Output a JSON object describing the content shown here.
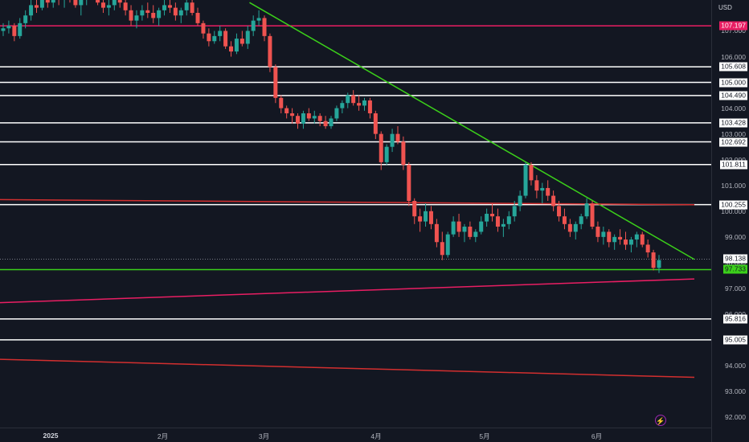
{
  "price_scale": {
    "currency": "USD",
    "ticks": [
      "107.000",
      "106.000",
      "105.000",
      "104.000",
      "103.000",
      "102.000",
      "101.000",
      "100.000",
      "99.000",
      "98.000",
      "97.000",
      "96.000",
      "95.000",
      "94.000",
      "93.000",
      "92.000"
    ],
    "tick_values": [
      107,
      106,
      105,
      104,
      103,
      102,
      101,
      100,
      99,
      98,
      97,
      96,
      95,
      94,
      93,
      92
    ]
  },
  "time_scale": {
    "labels": [
      "2025",
      "2月",
      "3月",
      "4月",
      "5月",
      "6月"
    ]
  },
  "colors": {
    "background": "#131722",
    "up_candle": "#26a69a",
    "down_candle": "#ef5350",
    "horizontal_level": "#ffffff",
    "pink_level": "#e91e63",
    "red_trendline": "#d32f2f",
    "green_trendline": "#3bd01a",
    "current_price_line": "#787b86",
    "lightning_icon": "#9c27b0"
  },
  "chart_data": {
    "type": "candlestick",
    "title": "",
    "currency": "USD",
    "ylim": [
      91.6,
      108.2
    ],
    "x_labels": [
      "2025",
      "2月",
      "3月",
      "4月",
      "5月",
      "6月"
    ],
    "horizontal_levels": [
      {
        "value": 107.197,
        "label": "107.197",
        "color": "#e91e63"
      },
      {
        "value": 105.608,
        "label": "105.608",
        "color": "#ffffff"
      },
      {
        "value": 105.0,
        "label": "105.000",
        "color": "#ffffff"
      },
      {
        "value": 104.49,
        "label": "104.490",
        "color": "#ffffff"
      },
      {
        "value": 103.428,
        "label": "103.428",
        "color": "#ffffff"
      },
      {
        "value": 102.692,
        "label": "102.692",
        "color": "#ffffff"
      },
      {
        "value": 101.811,
        "label": "101.811",
        "color": "#ffffff"
      },
      {
        "value": 100.255,
        "label": "100.255",
        "color": "#ffffff"
      },
      {
        "value": 97.733,
        "label": "97.733",
        "color": "#3bd01a"
      },
      {
        "value": 95.816,
        "label": "95.816",
        "color": "#ffffff"
      },
      {
        "value": 95.005,
        "label": "95.005",
        "color": "#ffffff"
      }
    ],
    "current_price": {
      "value": 98.138,
      "label": "98.138"
    },
    "trendlines": [
      {
        "name": "",
        "color": "#3bd01a",
        "from": {
          "date": "2025-02-25",
          "price": 108.1
        },
        "to": {
          "date": "2025-06-28",
          "price": 98.13
        }
      },
      {
        "name": "",
        "color": "#d32f2f",
        "from": {
          "date": "2024-12-18",
          "price": 100.45
        },
        "to": {
          "date": "2025-06-28",
          "price": 100.25
        }
      },
      {
        "name": "",
        "color": "#e91e63",
        "from": {
          "date": "2024-12-18",
          "price": 96.45
        },
        "to": {
          "date": "2025-06-28",
          "price": 97.37
        }
      },
      {
        "name": "",
        "color": "#d32f2f",
        "from": {
          "date": "2024-12-18",
          "price": 94.25
        },
        "to": {
          "date": "2025-06-28",
          "price": 93.55
        }
      }
    ],
    "candles": [
      [
        107.0,
        107.3,
        106.8,
        107.1
      ],
      [
        107.1,
        107.4,
        106.9,
        107.2
      ],
      [
        107.2,
        107.3,
        106.6,
        106.8
      ],
      [
        106.8,
        107.5,
        106.7,
        107.3
      ],
      [
        107.3,
        107.8,
        107.1,
        107.6
      ],
      [
        107.6,
        108.2,
        107.4,
        108.0
      ],
      [
        108.0,
        108.4,
        107.7,
        107.9
      ],
      [
        107.9,
        108.3,
        107.8,
        108.2
      ],
      [
        108.2,
        108.5,
        107.9,
        108.1
      ],
      [
        108.1,
        108.6,
        107.9,
        108.4
      ],
      [
        108.4,
        108.7,
        108.0,
        108.2
      ],
      [
        108.2,
        108.6,
        107.9,
        108.5
      ],
      [
        108.5,
        108.8,
        108.1,
        108.3
      ],
      [
        108.3,
        108.6,
        107.9,
        108.0
      ],
      [
        108.0,
        108.4,
        107.6,
        108.2
      ],
      [
        108.2,
        108.7,
        108.0,
        108.5
      ],
      [
        108.5,
        108.9,
        108.2,
        108.4
      ],
      [
        108.4,
        108.6,
        108.0,
        108.1
      ],
      [
        108.1,
        108.3,
        107.7,
        107.9
      ],
      [
        107.9,
        108.2,
        107.6,
        108.0
      ],
      [
        108.0,
        108.4,
        107.8,
        108.3
      ],
      [
        108.3,
        108.6,
        107.9,
        108.1
      ],
      [
        108.1,
        108.3,
        107.6,
        107.8
      ],
      [
        107.8,
        108.0,
        107.2,
        107.4
      ],
      [
        107.4,
        107.8,
        107.1,
        107.6
      ],
      [
        107.6,
        108.0,
        107.4,
        107.8
      ],
      [
        107.8,
        108.1,
        107.5,
        107.7
      ],
      [
        107.7,
        108.0,
        107.3,
        107.5
      ],
      [
        107.5,
        107.9,
        107.2,
        107.8
      ],
      [
        107.8,
        108.2,
        107.6,
        108.0
      ],
      [
        108.0,
        108.3,
        107.7,
        107.9
      ],
      [
        107.9,
        108.1,
        107.4,
        107.6
      ],
      [
        107.6,
        107.9,
        107.3,
        107.8
      ],
      [
        107.8,
        108.3,
        107.6,
        108.1
      ],
      [
        108.1,
        108.2,
        107.6,
        107.7
      ],
      [
        107.7,
        107.9,
        107.2,
        107.3
      ],
      [
        107.3,
        107.4,
        106.7,
        106.9
      ],
      [
        106.9,
        107.1,
        106.4,
        106.6
      ],
      [
        106.6,
        107.0,
        106.5,
        106.8
      ],
      [
        106.8,
        107.2,
        106.6,
        107.0
      ],
      [
        107.0,
        107.1,
        106.3,
        106.4
      ],
      [
        106.4,
        106.6,
        106.0,
        106.2
      ],
      [
        106.2,
        106.9,
        106.1,
        106.7
      ],
      [
        106.7,
        107.0,
        106.4,
        106.5
      ],
      [
        106.5,
        107.2,
        106.3,
        107.0
      ],
      [
        107.0,
        107.6,
        106.8,
        107.4
      ],
      [
        107.4,
        107.8,
        107.2,
        107.5
      ],
      [
        107.5,
        107.6,
        106.6,
        106.8
      ],
      [
        106.8,
        106.9,
        105.4,
        105.6
      ],
      [
        105.6,
        105.7,
        104.2,
        104.4
      ],
      [
        104.4,
        104.5,
        103.8,
        104.0
      ],
      [
        104.0,
        104.1,
        103.6,
        103.8
      ],
      [
        103.8,
        104.0,
        103.4,
        103.7
      ],
      [
        103.7,
        103.8,
        103.2,
        103.4
      ],
      [
        103.4,
        103.9,
        103.2,
        103.8
      ],
      [
        103.8,
        104.0,
        103.5,
        103.6
      ],
      [
        103.6,
        103.9,
        103.4,
        103.7
      ],
      [
        103.7,
        103.8,
        103.3,
        103.5
      ],
      [
        103.5,
        103.7,
        103.2,
        103.3
      ],
      [
        103.3,
        103.7,
        103.2,
        103.6
      ],
      [
        103.6,
        104.1,
        103.5,
        104.0
      ],
      [
        104.0,
        104.3,
        103.8,
        104.2
      ],
      [
        104.2,
        104.6,
        104.0,
        104.5
      ],
      [
        104.5,
        104.7,
        104.1,
        104.2
      ],
      [
        104.2,
        104.5,
        103.9,
        104.1
      ],
      [
        104.1,
        104.4,
        103.9,
        104.3
      ],
      [
        104.3,
        104.4,
        103.6,
        103.8
      ],
      [
        103.8,
        103.9,
        102.8,
        103.0
      ],
      [
        103.0,
        103.1,
        101.6,
        101.9
      ],
      [
        101.9,
        102.6,
        101.8,
        102.5
      ],
      [
        102.5,
        103.2,
        102.3,
        103.0
      ],
      [
        103.0,
        103.3,
        102.6,
        102.7
      ],
      [
        102.7,
        102.9,
        101.6,
        101.8
      ],
      [
        101.8,
        101.9,
        100.2,
        100.4
      ],
      [
        100.4,
        100.5,
        99.5,
        99.8
      ],
      [
        99.8,
        100.1,
        99.2,
        99.6
      ],
      [
        99.6,
        100.3,
        99.4,
        100.0
      ],
      [
        100.0,
        100.2,
        99.3,
        99.5
      ],
      [
        99.5,
        99.7,
        98.6,
        98.8
      ],
      [
        98.8,
        99.2,
        98.1,
        98.3
      ],
      [
        98.3,
        99.2,
        98.2,
        99.1
      ],
      [
        99.1,
        99.8,
        99.0,
        99.6
      ],
      [
        99.6,
        99.9,
        99.0,
        99.2
      ],
      [
        99.2,
        99.5,
        98.8,
        99.4
      ],
      [
        99.4,
        99.6,
        98.9,
        99.0
      ],
      [
        99.0,
        99.3,
        98.8,
        99.2
      ],
      [
        99.2,
        99.8,
        99.1,
        99.6
      ],
      [
        99.6,
        100.1,
        99.4,
        99.9
      ],
      [
        99.9,
        100.3,
        99.6,
        99.8
      ],
      [
        99.8,
        100.1,
        99.2,
        99.4
      ],
      [
        99.4,
        99.7,
        99.0,
        99.5
      ],
      [
        99.5,
        100.0,
        99.3,
        99.8
      ],
      [
        99.8,
        100.4,
        99.6,
        100.2
      ],
      [
        100.2,
        100.8,
        100.0,
        100.6
      ],
      [
        100.6,
        101.9,
        100.5,
        101.8
      ],
      [
        101.8,
        101.9,
        101.0,
        101.2
      ],
      [
        101.2,
        101.4,
        100.5,
        100.8
      ],
      [
        100.8,
        101.1,
        100.3,
        100.9
      ],
      [
        100.9,
        101.2,
        100.4,
        100.6
      ],
      [
        100.6,
        100.8,
        100.0,
        100.2
      ],
      [
        100.2,
        100.4,
        99.6,
        99.8
      ],
      [
        99.8,
        100.1,
        99.3,
        99.5
      ],
      [
        99.5,
        99.7,
        99.0,
        99.2
      ],
      [
        99.2,
        99.6,
        98.9,
        99.5
      ],
      [
        99.5,
        99.9,
        99.3,
        99.8
      ],
      [
        99.8,
        100.5,
        99.7,
        100.3
      ],
      [
        100.3,
        100.4,
        99.3,
        99.4
      ],
      [
        99.4,
        99.6,
        98.8,
        99.0
      ],
      [
        99.0,
        99.4,
        98.7,
        99.2
      ],
      [
        99.2,
        99.3,
        98.6,
        98.8
      ],
      [
        98.8,
        99.1,
        98.5,
        99.0
      ],
      [
        99.0,
        99.3,
        98.7,
        98.9
      ],
      [
        98.9,
        99.2,
        98.5,
        98.7
      ],
      [
        98.7,
        99.0,
        98.4,
        98.9
      ],
      [
        98.9,
        99.2,
        98.6,
        99.1
      ],
      [
        99.1,
        99.2,
        98.6,
        98.7
      ],
      [
        98.7,
        98.9,
        98.2,
        98.4
      ],
      [
        98.4,
        98.5,
        97.7,
        97.8
      ],
      [
        97.8,
        98.3,
        97.6,
        98.1
      ]
    ]
  }
}
